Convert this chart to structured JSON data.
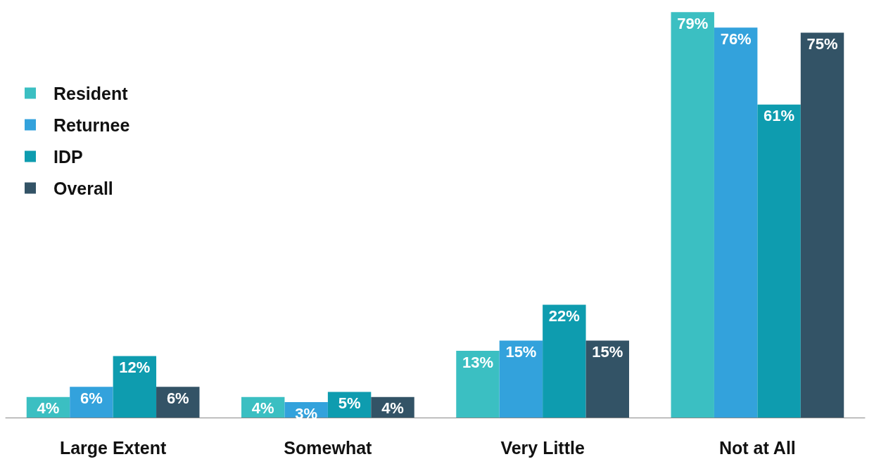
{
  "chart_data": {
    "type": "bar",
    "categories": [
      "Large Extent",
      "Somewhat",
      "Very Little",
      "Not at All"
    ],
    "series": [
      {
        "name": "Resident",
        "color": "#3bbfc2",
        "values": [
          4,
          4,
          13,
          79
        ],
        "value_labels": [
          "4%",
          "4%",
          "13%",
          "79%"
        ]
      },
      {
        "name": "Returnee",
        "color": "#33a2dc",
        "values": [
          6,
          3,
          15,
          76
        ],
        "value_labels": [
          "6%",
          "3%",
          "15%",
          "76%"
        ]
      },
      {
        "name": "IDP",
        "color": "#0e9caf",
        "values": [
          12,
          5,
          22,
          61
        ],
        "value_labels": [
          "12%",
          "5%",
          "22%",
          "61%"
        ]
      },
      {
        "name": "Overall",
        "color": "#335366",
        "values": [
          6,
          4,
          15,
          75
        ],
        "value_labels": [
          "6%",
          "4%",
          "15%",
          "75%"
        ]
      }
    ],
    "legend": "top left"
  }
}
